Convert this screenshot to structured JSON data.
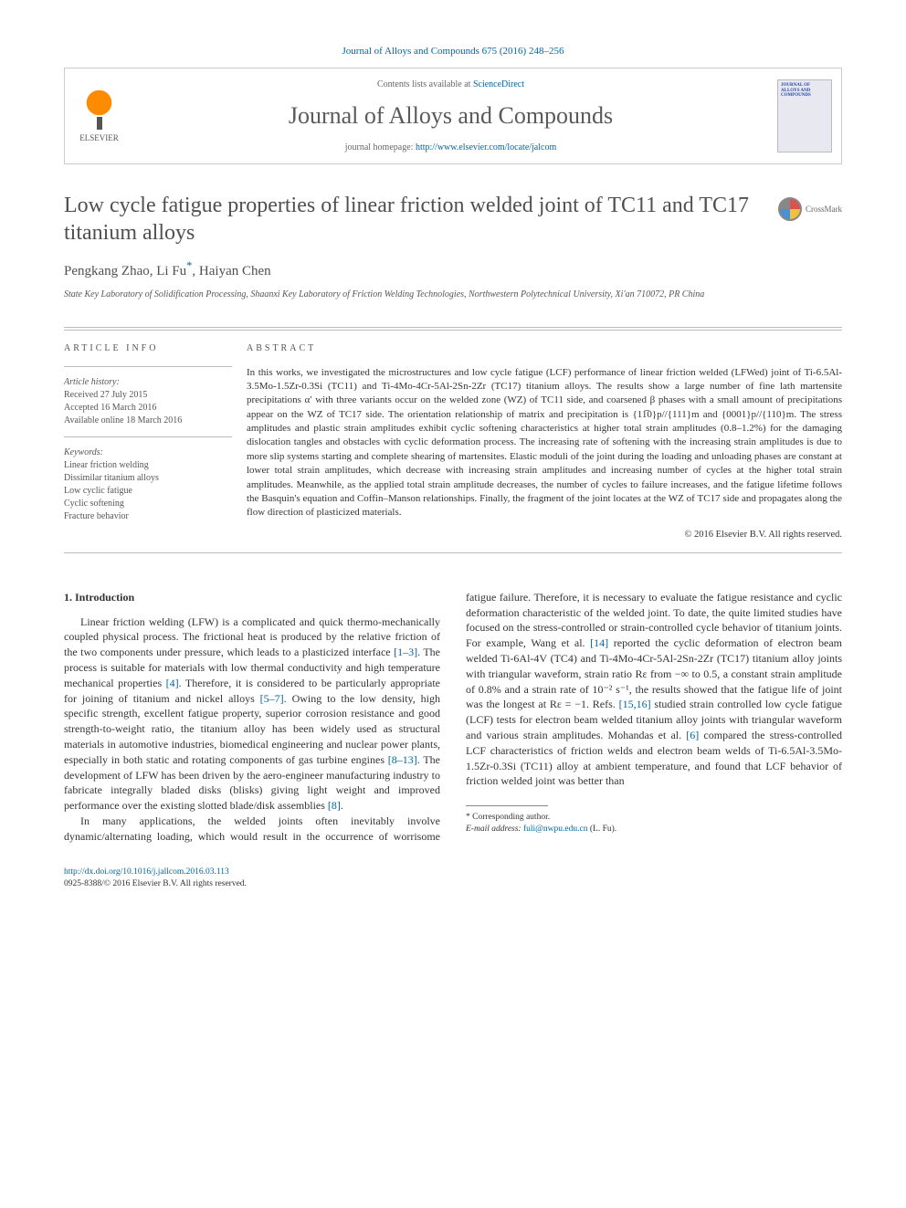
{
  "citation": "Journal of Alloys and Compounds 675 (2016) 248–256",
  "header": {
    "publisher": "ELSEVIER",
    "contents_prefix": "Contents lists available at ",
    "contents_link": "ScienceDirect",
    "journal": "Journal of Alloys and Compounds",
    "homepage_prefix": "journal homepage: ",
    "homepage_url": "http://www.elsevier.com/locate/jalcom",
    "cover_label": "JOURNAL OF ALLOYS AND COMPOUNDS"
  },
  "title": "Low cycle fatigue properties of linear friction welded joint of TC11 and TC17 titanium alloys",
  "crossmark": "CrossMark",
  "authors_html": "Pengkang Zhao, Li Fu",
  "corr_mark": "*",
  "authors_tail": ", Haiyan Chen",
  "affiliation": "State Key Laboratory of Solidification Processing, Shaanxi Key Laboratory of Friction Welding Technologies, Northwestern Polytechnical University, Xi'an 710072, PR China",
  "info": {
    "heading": "ARTICLE INFO",
    "history_label": "Article history:",
    "received": "Received 27 July 2015",
    "accepted": "Accepted 16 March 2016",
    "online": "Available online 18 March 2016",
    "keywords_label": "Keywords:",
    "kw1": "Linear friction welding",
    "kw2": "Dissimilar titanium alloys",
    "kw3": "Low cyclic fatigue",
    "kw4": "Cyclic softening",
    "kw5": "Fracture behavior"
  },
  "abstract": {
    "heading": "ABSTRACT",
    "text": "In this works, we investigated the microstructures and low cycle fatigue (LCF) performance of linear friction welded (LFWed) joint of Ti-6.5Al-3.5Mo-1.5Zr-0.3Si (TC11) and Ti-4Mo-4Cr-5Al-2Sn-2Zr (TC17) titanium alloys. The results show a large number of fine lath martensite precipitations α′ with three variants occur on the welded zone (WZ) of TC11 side, and coarsened β phases with a small amount of precipitations appear on the WZ of TC17 side. The orientation relationship of matrix and precipitation is {11̅0}p//{111}m and {0001}p//{110}m. The stress amplitudes and plastic strain amplitudes exhibit cyclic softening characteristics at higher total strain amplitudes (0.8–1.2%) for the damaging dislocation tangles and obstacles with cyclic deformation process. The increasing rate of softening with the increasing strain amplitudes is due to more slip systems starting and complete shearing of martensites. Elastic moduli of the joint during the loading and unloading phases are constant at lower total strain amplitudes, which decrease with increasing strain amplitudes and increasing number of cycles at the higher total strain amplitudes. Meanwhile, as the applied total strain amplitude decreases, the number of cycles to failure increases, and the fatigue lifetime follows the Basquin's equation and Coffin–Manson relationships. Finally, the fragment of the joint locates at the WZ of TC17 side and propagates along the flow direction of plasticized materials.",
    "copyright": "© 2016 Elsevier B.V. All rights reserved."
  },
  "section1": {
    "heading": "1. Introduction",
    "p1a": "Linear friction welding (LFW) is a complicated and quick thermo-mechanically coupled physical process. The frictional heat is produced by the relative friction of the two components under pressure, which leads to a plasticized interface ",
    "ref1": "[1–3]",
    "p1b": ". The process is suitable for materials with low thermal conductivity and high temperature mechanical properties ",
    "ref2": "[4]",
    "p1c": ". Therefore, it is considered to be particularly appropriate for joining of titanium and nickel alloys ",
    "ref3": "[5–7]",
    "p1d": ". Owing to the low density, high specific strength, excellent fatigue property, superior corrosion resistance and good strength-to-weight ratio, the titanium alloy has been widely used as structural materials in automotive industries, biomedical engineering and nuclear power plants, especially in both static and rotating components of gas turbine engines ",
    "ref4": "[8–13]",
    "p1e": ". The development of LFW has been driven by the aero-engineer manufacturing industry to fabricate integrally bladed disks (blisks) giving light weight and improved performance over the existing slotted blade/disk assemblies ",
    "ref5": "[8]",
    "p1f": ".",
    "p2a": "In many applications, the welded joints often inevitably involve dynamic/alternating loading, which would result in the occurrence of worrisome fatigue failure. Therefore, it is necessary to evaluate the fatigue resistance and cyclic deformation characteristic of the welded joint. To date, the quite limited studies have focused on the stress-controlled or strain-controlled cycle behavior of titanium joints. For example, Wang et al. ",
    "ref6": "[14]",
    "p2b": " reported the cyclic deformation of electron beam welded Ti-6Al-4V (TC4) and Ti-4Mo-4Cr-5Al-2Sn-2Zr (TC17) titanium alloy joints with triangular waveform, strain ratio Rε from −∞ to 0.5, a constant strain amplitude of 0.8% and a strain rate of 10⁻² s⁻¹, the results showed that the fatigue life of joint was the longest at Rε = −1. Refs. ",
    "ref7": "[15,16]",
    "p2c": " studied strain controlled low cycle fatigue (LCF) tests for electron beam welded titanium alloy joints with triangular waveform and various strain amplitudes. Mohandas et al. ",
    "ref8": "[6]",
    "p2d": " compared the stress-controlled LCF characteristics of friction welds and electron beam welds of Ti-6.5Al-3.5Mo-1.5Zr-0.3Si (TC11) alloy at ambient temperature, and found that LCF behavior of friction welded joint was better than"
  },
  "footnotes": {
    "corr": "* Corresponding author.",
    "email_label": "E-mail address: ",
    "email": "fuli@nwpu.edu.cn",
    "email_tail": " (L. Fu)."
  },
  "bottom": {
    "doi": "http://dx.doi.org/10.1016/j.jallcom.2016.03.113",
    "issn": "0925-8388/© 2016 Elsevier B.V. All rights reserved."
  }
}
